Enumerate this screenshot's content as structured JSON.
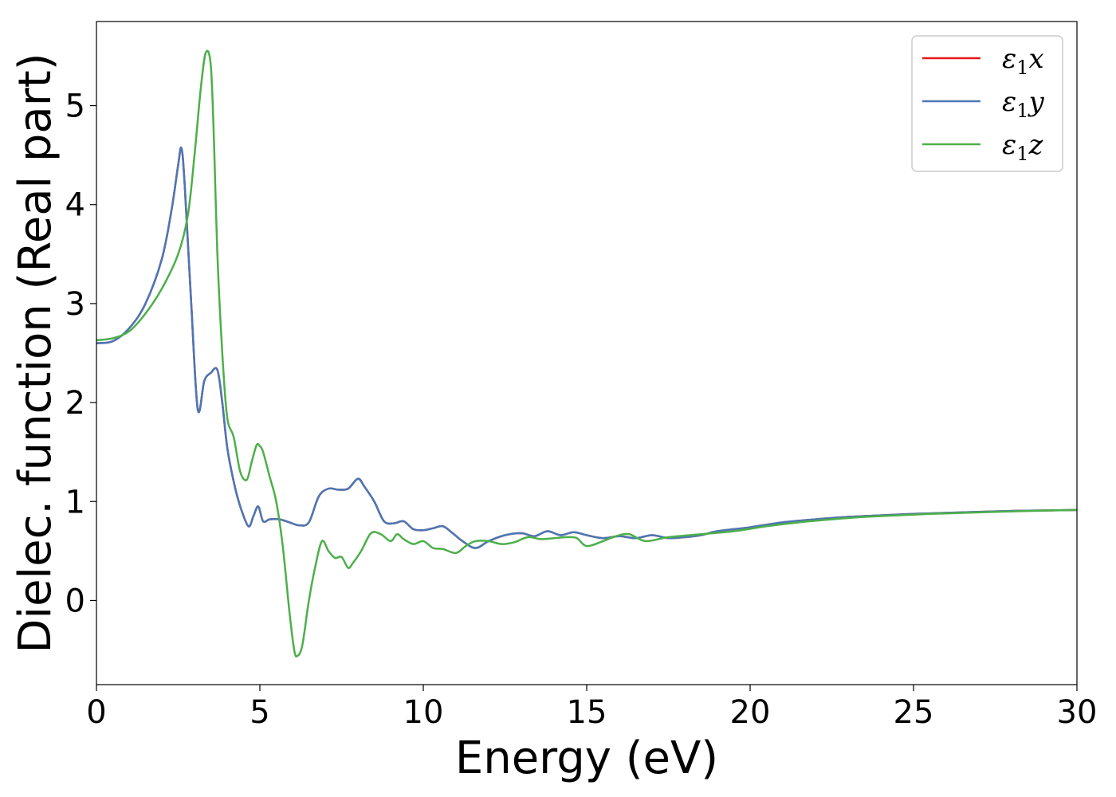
{
  "chart_data": {
    "type": "line",
    "xlabel": "Energy (eV)",
    "ylabel": "Dielec. function (Real part)",
    "xlim": [
      0,
      30
    ],
    "ylim": [
      -0.85,
      5.85
    ],
    "xticks": [
      0,
      5,
      10,
      15,
      20,
      25,
      30
    ],
    "xtick_labels": [
      "0",
      "5",
      "10",
      "15",
      "20",
      "25",
      "30"
    ],
    "yticks": [
      0,
      1,
      2,
      3,
      4,
      5
    ],
    "ytick_labels": [
      "0",
      "1",
      "2",
      "3",
      "4",
      "5"
    ],
    "grid": false,
    "legend_position": "top-right",
    "series": [
      {
        "name": "ε1x",
        "legend_main": "ε",
        "legend_sub": "1",
        "legend_var": "x",
        "color": "#e41a1c",
        "x": [
          0,
          0.5,
          1,
          1.5,
          2,
          2.3,
          2.5,
          2.6,
          2.7,
          2.9,
          3.1,
          3.3,
          3.5,
          3.7,
          3.85,
          4,
          4.2,
          4.4,
          4.65,
          4.8,
          4.95,
          5.1,
          5.3,
          5.6,
          5.9,
          6.2,
          6.5,
          6.8,
          7.1,
          7.4,
          7.7,
          8,
          8.2,
          8.5,
          8.8,
          9.1,
          9.4,
          9.7,
          10,
          10.3,
          10.6,
          10.9,
          11.2,
          11.6,
          12,
          12.5,
          13,
          13.4,
          13.8,
          14.2,
          14.6,
          15,
          15.5,
          16,
          16.5,
          17,
          17.5,
          18,
          18.5,
          19,
          20,
          21,
          22,
          23,
          24,
          25,
          26,
          27,
          28,
          29,
          30
        ],
        "y": [
          2.6,
          2.62,
          2.75,
          3.0,
          3.45,
          3.95,
          4.4,
          4.57,
          4.2,
          3.0,
          1.93,
          2.22,
          2.3,
          2.33,
          2.0,
          1.55,
          1.2,
          0.95,
          0.75,
          0.85,
          0.95,
          0.8,
          0.82,
          0.82,
          0.79,
          0.76,
          0.79,
          1.05,
          1.13,
          1.12,
          1.13,
          1.23,
          1.15,
          1.0,
          0.8,
          0.78,
          0.8,
          0.72,
          0.71,
          0.73,
          0.75,
          0.68,
          0.6,
          0.53,
          0.6,
          0.66,
          0.68,
          0.65,
          0.7,
          0.66,
          0.69,
          0.66,
          0.63,
          0.65,
          0.63,
          0.66,
          0.63,
          0.64,
          0.66,
          0.7,
          0.74,
          0.79,
          0.82,
          0.845,
          0.86,
          0.875,
          0.885,
          0.895,
          0.905,
          0.91,
          0.915
        ]
      },
      {
        "name": "ε1y",
        "legend_main": "ε",
        "legend_sub": "1",
        "legend_var": "y",
        "color": "#4a78b5",
        "x": [
          0,
          0.5,
          1,
          1.5,
          2,
          2.3,
          2.5,
          2.6,
          2.7,
          2.9,
          3.1,
          3.3,
          3.5,
          3.7,
          3.85,
          4,
          4.2,
          4.4,
          4.65,
          4.8,
          4.95,
          5.1,
          5.3,
          5.6,
          5.9,
          6.2,
          6.5,
          6.8,
          7.1,
          7.4,
          7.7,
          8,
          8.2,
          8.5,
          8.8,
          9.1,
          9.4,
          9.7,
          10,
          10.3,
          10.6,
          10.9,
          11.2,
          11.6,
          12,
          12.5,
          13,
          13.4,
          13.8,
          14.2,
          14.6,
          15,
          15.5,
          16,
          16.5,
          17,
          17.5,
          18,
          18.5,
          19,
          20,
          21,
          22,
          23,
          24,
          25,
          26,
          27,
          28,
          29,
          30
        ],
        "y": [
          2.6,
          2.62,
          2.75,
          3.0,
          3.45,
          3.95,
          4.4,
          4.57,
          4.2,
          3.0,
          1.93,
          2.22,
          2.3,
          2.33,
          2.0,
          1.55,
          1.2,
          0.95,
          0.75,
          0.85,
          0.95,
          0.8,
          0.82,
          0.82,
          0.79,
          0.76,
          0.79,
          1.05,
          1.13,
          1.12,
          1.13,
          1.23,
          1.15,
          1.0,
          0.8,
          0.78,
          0.8,
          0.72,
          0.71,
          0.73,
          0.75,
          0.68,
          0.6,
          0.53,
          0.6,
          0.66,
          0.68,
          0.65,
          0.7,
          0.66,
          0.69,
          0.66,
          0.63,
          0.65,
          0.63,
          0.66,
          0.63,
          0.64,
          0.66,
          0.7,
          0.74,
          0.79,
          0.82,
          0.845,
          0.86,
          0.875,
          0.885,
          0.895,
          0.905,
          0.91,
          0.915
        ]
      },
      {
        "name": "ε1z",
        "legend_main": "ε",
        "legend_sub": "1",
        "legend_var": "z",
        "color": "#4daf4a",
        "x": [
          0,
          0.5,
          1,
          1.5,
          2,
          2.5,
          2.8,
          3.0,
          3.2,
          3.35,
          3.5,
          3.6,
          3.7,
          3.85,
          4.0,
          4.2,
          4.4,
          4.6,
          4.75,
          4.9,
          5.0,
          5.1,
          5.3,
          5.5,
          5.7,
          5.9,
          6.05,
          6.15,
          6.3,
          6.5,
          6.7,
          6.9,
          7.1,
          7.3,
          7.5,
          7.7,
          7.85,
          8.1,
          8.4,
          8.7,
          9.0,
          9.2,
          9.4,
          9.7,
          10.0,
          10.3,
          10.6,
          11.0,
          11.3,
          11.6,
          12.0,
          12.4,
          12.8,
          13.2,
          13.6,
          14.0,
          14.4,
          14.7,
          15.0,
          15.5,
          15.9,
          16.3,
          16.8,
          17.5,
          18.5,
          19.5,
          20.5,
          21.5,
          22.5,
          23.5,
          24.5,
          25.5,
          26.5,
          27.5,
          28.5,
          30
        ],
        "y": [
          2.63,
          2.65,
          2.72,
          2.9,
          3.15,
          3.5,
          3.9,
          4.5,
          5.2,
          5.54,
          5.4,
          4.6,
          3.5,
          2.5,
          1.85,
          1.65,
          1.3,
          1.22,
          1.4,
          1.57,
          1.56,
          1.5,
          1.25,
          1.0,
          0.55,
          -0.1,
          -0.5,
          -0.56,
          -0.45,
          0.0,
          0.35,
          0.6,
          0.5,
          0.43,
          0.44,
          0.33,
          0.38,
          0.5,
          0.68,
          0.67,
          0.6,
          0.67,
          0.62,
          0.57,
          0.6,
          0.53,
          0.52,
          0.48,
          0.55,
          0.6,
          0.6,
          0.57,
          0.59,
          0.64,
          0.62,
          0.63,
          0.64,
          0.63,
          0.55,
          0.6,
          0.65,
          0.67,
          0.6,
          0.64,
          0.67,
          0.7,
          0.75,
          0.79,
          0.82,
          0.845,
          0.86,
          0.875,
          0.885,
          0.895,
          0.905,
          0.915
        ]
      }
    ]
  }
}
